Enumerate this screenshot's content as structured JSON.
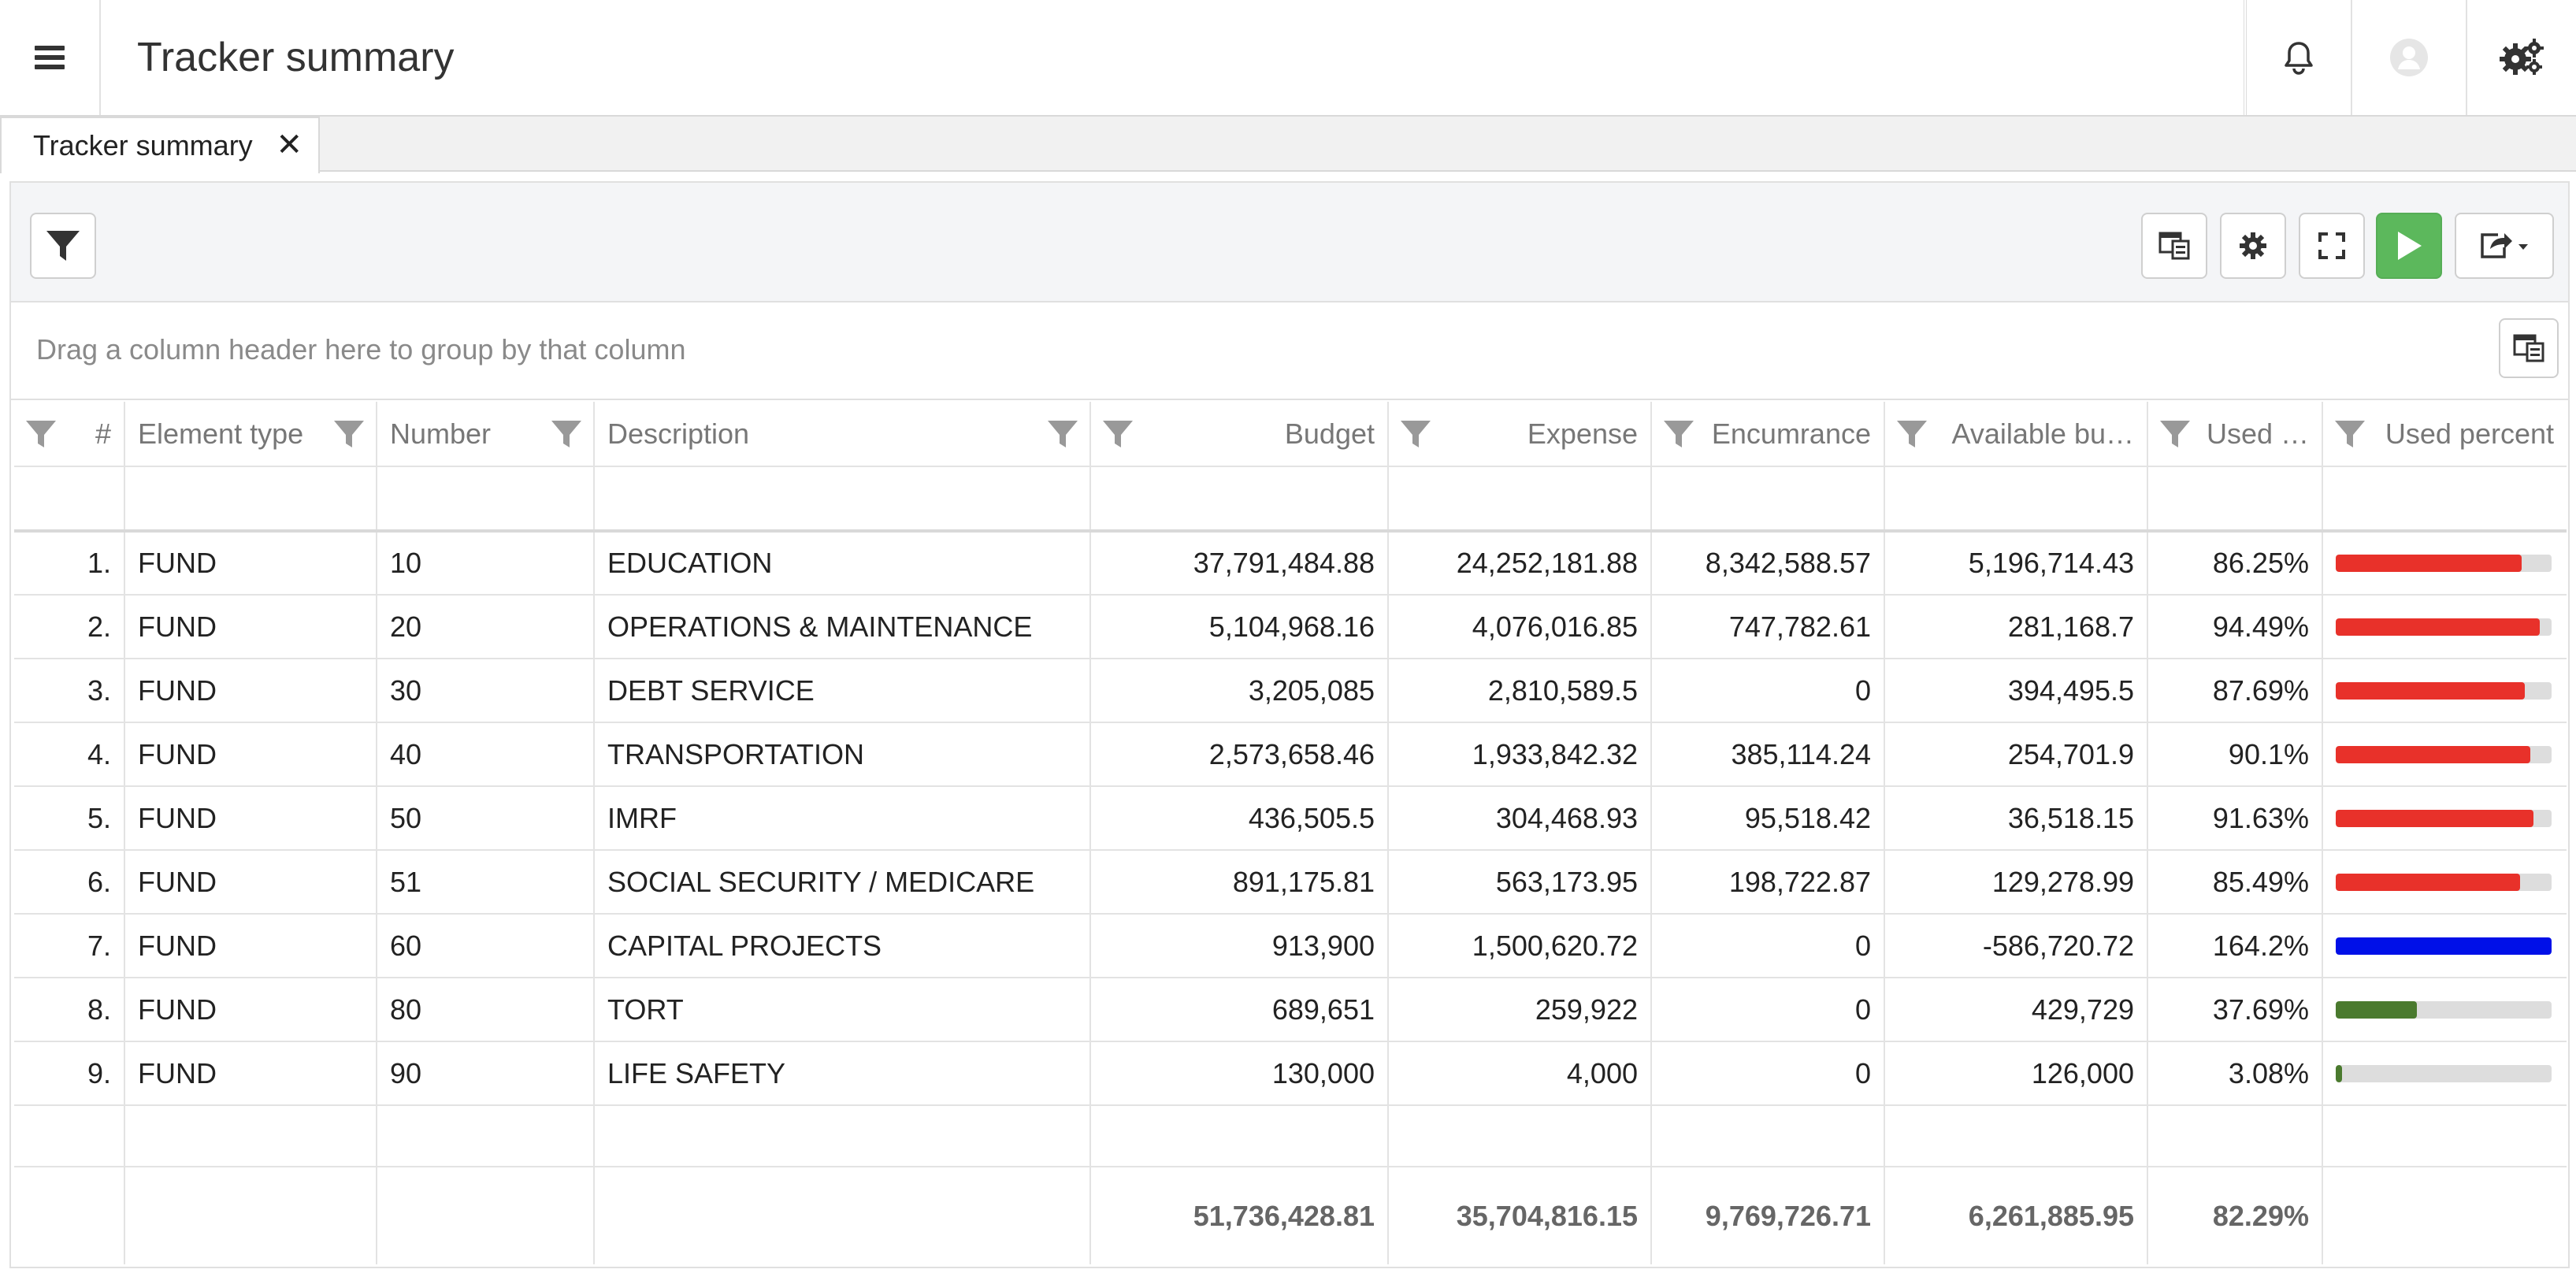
{
  "app": {
    "title": "Tracker summary"
  },
  "header": {
    "icons": [
      "menu-icon",
      "bell-icon",
      "user-avatar-icon",
      "gears-icon"
    ]
  },
  "tabs": [
    {
      "label": "Tracker summary",
      "close": "✕"
    }
  ],
  "group_hint": "Drag a column header here to group by that column",
  "columns": {
    "index": "#",
    "element_type": "Element type",
    "number": "Number",
    "description": "Description",
    "budget": "Budget",
    "expense": "Expense",
    "encumbrance": "Encumrance",
    "available": "Available bu…",
    "used": "Used …",
    "used_percent": "Used percent"
  },
  "rows": [
    {
      "idx": "1.",
      "type": "FUND",
      "number": "10",
      "description": "EDUCATION",
      "budget": "37,791,484.88",
      "expense": "24,252,181.88",
      "encumbrance": "8,342,588.57",
      "available": "5,196,714.43",
      "used": "86.25%",
      "pct": 86.25,
      "color": "#e8312a"
    },
    {
      "idx": "2.",
      "type": "FUND",
      "number": "20",
      "description": "OPERATIONS & MAINTENANCE",
      "budget": "5,104,968.16",
      "expense": "4,076,016.85",
      "encumbrance": "747,782.61",
      "available": "281,168.7",
      "used": "94.49%",
      "pct": 94.49,
      "color": "#e8312a"
    },
    {
      "idx": "3.",
      "type": "FUND",
      "number": "30",
      "description": "DEBT SERVICE",
      "budget": "3,205,085",
      "expense": "2,810,589.5",
      "encumbrance": "0",
      "available": "394,495.5",
      "used": "87.69%",
      "pct": 87.69,
      "color": "#e8312a"
    },
    {
      "idx": "4.",
      "type": "FUND",
      "number": "40",
      "description": "TRANSPORTATION",
      "budget": "2,573,658.46",
      "expense": "1,933,842.32",
      "encumbrance": "385,114.24",
      "available": "254,701.9",
      "used": "90.1%",
      "pct": 90.1,
      "color": "#e8312a"
    },
    {
      "idx": "5.",
      "type": "FUND",
      "number": "50",
      "description": "IMRF",
      "budget": "436,505.5",
      "expense": "304,468.93",
      "encumbrance": "95,518.42",
      "available": "36,518.15",
      "used": "91.63%",
      "pct": 91.63,
      "color": "#e8312a"
    },
    {
      "idx": "6.",
      "type": "FUND",
      "number": "51",
      "description": "SOCIAL SECURITY / MEDICARE",
      "budget": "891,175.81",
      "expense": "563,173.95",
      "encumbrance": "198,722.87",
      "available": "129,278.99",
      "used": "85.49%",
      "pct": 85.49,
      "color": "#e8312a"
    },
    {
      "idx": "7.",
      "type": "FUND",
      "number": "60",
      "description": "CAPITAL PROJECTS",
      "budget": "913,900",
      "expense": "1,500,620.72",
      "encumbrance": "0",
      "available": "-586,720.72",
      "used": "164.2%",
      "pct": 100,
      "color": "#0010e8"
    },
    {
      "idx": "8.",
      "type": "FUND",
      "number": "80",
      "description": "TORT",
      "budget": "689,651",
      "expense": "259,922",
      "encumbrance": "0",
      "available": "429,729",
      "used": "37.69%",
      "pct": 37.69,
      "color": "#4a7a2e"
    },
    {
      "idx": "9.",
      "type": "FUND",
      "number": "90",
      "description": "LIFE SAFETY",
      "budget": "130,000",
      "expense": "4,000",
      "encumbrance": "0",
      "available": "126,000",
      "used": "3.08%",
      "pct": 3.08,
      "color": "#4a7a2e"
    }
  ],
  "totals": {
    "budget": "51,736,428.81",
    "expense": "35,704,816.15",
    "encumbrance": "9,769,726.71",
    "available": "6,261,885.95",
    "used": "82.29%"
  }
}
